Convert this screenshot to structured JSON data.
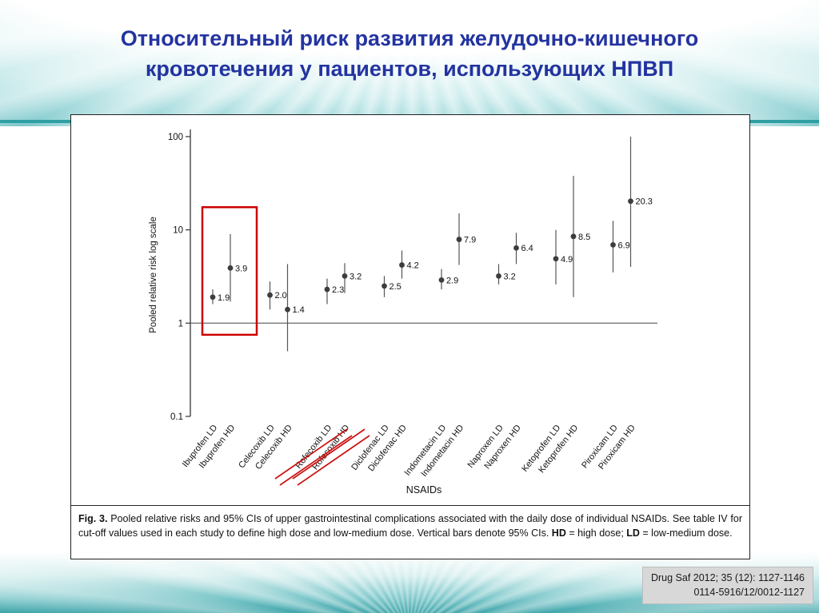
{
  "slide": {
    "title_lines": [
      "Относительный риск развития желудочно-кишечного",
      "кровотечения у пациентов, использующих НПВП"
    ],
    "citation_lines": [
      "Drug Saf 2012; 35 (12): 1127-1146",
      "0114-5916/12/0012-1127"
    ],
    "accent_color": "#2f9fa3",
    "title_color": "#2334a0"
  },
  "figure": {
    "caption_segments": [
      {
        "text": "Fig. 3.",
        "bold": true
      },
      {
        "text": " Pooled relative risks and 95% CIs of upper gastrointestinal complications associated with the daily dose of individual NSAIDs. See table IV for cut-off values used in each study to define high dose and low-medium dose. Vertical bars denote 95% CIs. ",
        "bold": false
      },
      {
        "text": "HD",
        "bold": true
      },
      {
        "text": " = high dose; ",
        "bold": false
      },
      {
        "text": "LD",
        "bold": true
      },
      {
        "text": " = low-medium dose.",
        "bold": false
      }
    ]
  },
  "chart_data": {
    "type": "scatter",
    "title": "",
    "xlabel": "NSAIDs",
    "ylabel": "Pooled relative risk log scale",
    "y_scale": "log",
    "ylim": [
      0.1,
      100
    ],
    "y_ticks": [
      0.1,
      1,
      10,
      100
    ],
    "reference_line": 1,
    "grid": false,
    "categories": [
      "Ibuprofen LD",
      "Ibuprofen HD",
      "Celecoxib LD",
      "Celecoxib HD",
      "Rofecoxib LD",
      "Rofecoxib HD",
      "Diclofenac LD",
      "Diclofenac HD",
      "Indometacin LD",
      "Indometacin HD",
      "Naproxen LD",
      "Naproxen HD",
      "Ketoprofen LD",
      "Ketoprofen HD",
      "Piroxicam LD",
      "Piroxicam HD"
    ],
    "values": [
      1.9,
      3.9,
      2.0,
      1.4,
      2.3,
      3.2,
      2.5,
      4.2,
      2.9,
      7.9,
      3.2,
      6.4,
      4.9,
      8.5,
      6.9,
      20.3
    ],
    "point_labels": [
      "1.9",
      "3.9",
      "2.0",
      "1.4",
      "2.3",
      "3.2",
      "2.5",
      "4.2",
      "2.9",
      "7.9",
      "3.2",
      "6.4",
      "4.9",
      "8.5",
      "6.9",
      "20.3"
    ],
    "ci_low": [
      1.6,
      1.7,
      1.4,
      0.5,
      1.6,
      2.1,
      1.9,
      3.0,
      2.3,
      4.2,
      2.6,
      4.3,
      2.6,
      1.9,
      3.5,
      4.0
    ],
    "ci_high": [
      2.3,
      9.0,
      2.8,
      4.3,
      3.0,
      4.4,
      3.2,
      6.0,
      3.8,
      15.0,
      4.3,
      9.3,
      10.0,
      38.0,
      12.5,
      100.0
    ],
    "crossed_out_categories": [
      "Rofecoxib LD",
      "Rofecoxib HD"
    ],
    "highlight_box": {
      "categories": [
        "Ibuprofen LD",
        "Ibuprofen HD"
      ],
      "value_range": [
        0.75,
        17.5
      ],
      "color": "#cc0000"
    },
    "strike_color": "#cc1111",
    "legend": null
  }
}
